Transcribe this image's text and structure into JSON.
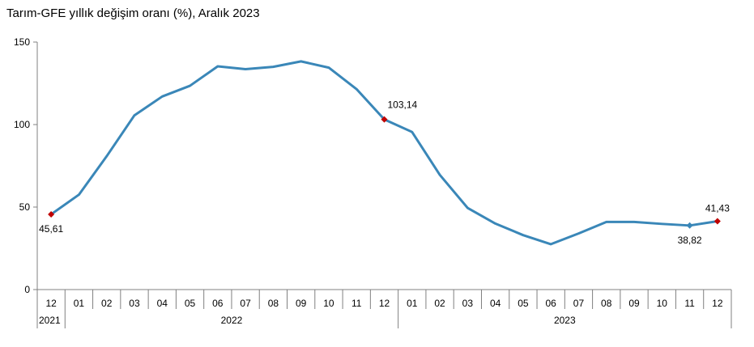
{
  "chart_data": {
    "type": "line",
    "title": "Tarım-GFE yıllık değişim oranı (%), Aralık 2023",
    "xlabel": "",
    "ylabel": "",
    "ylim": [
      0,
      150
    ],
    "yticks": [
      0,
      50,
      100,
      150
    ],
    "grid": false,
    "months": [
      "12",
      "01",
      "02",
      "03",
      "04",
      "05",
      "06",
      "07",
      "08",
      "09",
      "10",
      "11",
      "12",
      "01",
      "02",
      "03",
      "04",
      "05",
      "06",
      "07",
      "08",
      "09",
      "10",
      "11",
      "12"
    ],
    "years": [
      {
        "label": "2021",
        "start": 0,
        "end": 0
      },
      {
        "label": "2022",
        "start": 1,
        "end": 12
      },
      {
        "label": "2023",
        "start": 13,
        "end": 24
      }
    ],
    "series": [
      {
        "color": "#3a87b8",
        "values": [
          45.61,
          57.5,
          80.8,
          105.6,
          117.0,
          123.5,
          135.3,
          133.6,
          135.0,
          138.3,
          134.5,
          121.5,
          103.14,
          95.5,
          69.5,
          49.5,
          40.0,
          33.0,
          27.5,
          34.0,
          41.0,
          41.0,
          39.8,
          38.82,
          41.43
        ]
      }
    ],
    "point_labels": [
      {
        "index": 0,
        "text": "45,61",
        "marker_color": "#c00000",
        "position": "below"
      },
      {
        "index": 12,
        "text": "103,14",
        "marker_color": "#c00000",
        "position": "above-right"
      },
      {
        "index": 23,
        "text": "38,82",
        "marker_color": "#3a87b8",
        "position": "below"
      },
      {
        "index": 24,
        "text": "41,43",
        "marker_color": "#c00000",
        "position": "above"
      }
    ]
  }
}
